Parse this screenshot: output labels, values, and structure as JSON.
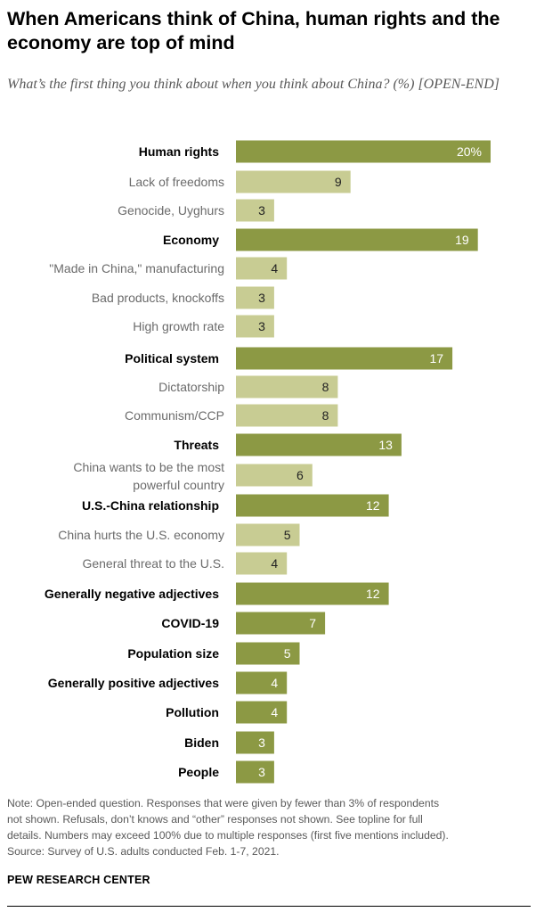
{
  "title": "When Americans think of China, human rights and the economy are top of mind",
  "subtitle": "What’s the first thing you think about when you think about China? (%) [OPEN-END]",
  "colors": {
    "parent_bar": "#8c9944",
    "child_bar": "#c8cc93"
  },
  "chart_data": {
    "type": "bar",
    "orientation": "horizontal",
    "value_unit": "%",
    "xlim": [
      0,
      20
    ],
    "categories": [
      {
        "label": "Human rights",
        "value": 20,
        "display": "20%",
        "level": "parent"
      },
      {
        "label": "Lack of freedoms",
        "value": 9,
        "display": "9",
        "level": "child"
      },
      {
        "label": "Genocide, Uyghurs",
        "value": 3,
        "display": "3",
        "level": "child"
      },
      {
        "label": "Economy",
        "value": 19,
        "display": "19",
        "level": "parent"
      },
      {
        "label": "\"Made in China,\" manufacturing",
        "value": 4,
        "display": "4",
        "level": "child"
      },
      {
        "label": "Bad products, knockoffs",
        "value": 3,
        "display": "3",
        "level": "child"
      },
      {
        "label": "High growth rate",
        "value": 3,
        "display": "3",
        "level": "child"
      },
      {
        "label": "Political system",
        "value": 17,
        "display": "17",
        "level": "parent"
      },
      {
        "label": "Dictatorship",
        "value": 8,
        "display": "8",
        "level": "child"
      },
      {
        "label": "Communism/CCP",
        "value": 8,
        "display": "8",
        "level": "child"
      },
      {
        "label": "Threats",
        "value": 13,
        "display": "13",
        "level": "parent"
      },
      {
        "label": "China wants to be the most powerful country",
        "lines": [
          "China wants to be the most",
          "powerful country"
        ],
        "value": 6,
        "display": "6",
        "level": "child"
      },
      {
        "label": "U.S.-China relationship",
        "value": 12,
        "display": "12",
        "level": "parent"
      },
      {
        "label": "China hurts the U.S. economy",
        "value": 5,
        "display": "5",
        "level": "child"
      },
      {
        "label": "General threat to the U.S.",
        "value": 4,
        "display": "4",
        "level": "child"
      },
      {
        "label": "Generally negative adjectives",
        "value": 12,
        "display": "12",
        "level": "parent"
      },
      {
        "label": "COVID-19",
        "value": 7,
        "display": "7",
        "level": "parent"
      },
      {
        "label": "Population size",
        "value": 5,
        "display": "5",
        "level": "parent"
      },
      {
        "label": "Generally positive adjectives",
        "value": 4,
        "display": "4",
        "level": "parent"
      },
      {
        "label": "Pollution",
        "value": 4,
        "display": "4",
        "level": "parent"
      },
      {
        "label": "Biden",
        "value": 3,
        "display": "3",
        "level": "parent"
      },
      {
        "label": "People",
        "value": 3,
        "display": "3",
        "level": "parent"
      }
    ]
  },
  "note": {
    "lines": [
      "Note: Open-ended question. Responses that were given by fewer than 3% of respondents",
      "not shown. Refusals, don’t knows and “other” responses not shown. See topline for full",
      "details. Numbers may exceed 100% due to multiple responses (first five mentions included).",
      "Source: Survey of U.S. adults conducted Feb. 1-7, 2021."
    ]
  },
  "brand": "PEW RESEARCH CENTER"
}
